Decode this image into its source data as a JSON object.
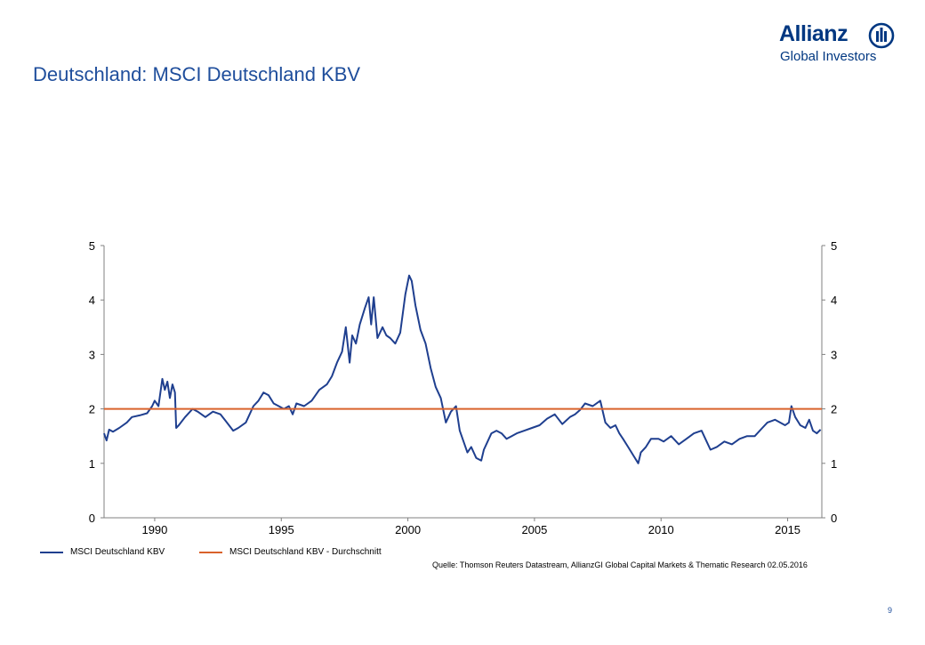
{
  "page": {
    "title": "Deutschland: MSCI Deutschland KBV",
    "page_number": "9"
  },
  "logo": {
    "name": "Allianz",
    "subtitle": "Global Investors",
    "brand_color": "#003781"
  },
  "legend": {
    "series_label": "MSCI Deutschland KBV",
    "average_label": "MSCI Deutschland KBV - Durchschnitt"
  },
  "source": "Quelle: Thomson Reuters Datastream, AllianzGI Global Capital Markets & Thematic Research 02.05.2016",
  "colors": {
    "series": "#1f3f8f",
    "average": "#d9622b",
    "title": "#1f4e9c",
    "axis": "#808080"
  },
  "chart_data": {
    "type": "line",
    "title": "",
    "xlabel": "",
    "ylabel": "",
    "xlim": [
      1988.0,
      2016.35
    ],
    "ylim": [
      0,
      5
    ],
    "x_ticks": [
      1990,
      1995,
      2000,
      2005,
      2010,
      2015
    ],
    "y_ticks": [
      0,
      1,
      2,
      3,
      4,
      5
    ],
    "y_axis_right": true,
    "grid": false,
    "legend_position": "bottom-left",
    "series": [
      {
        "name": "MSCI Deutschland KBV",
        "x": [
          1988.0,
          1988.1,
          1988.2,
          1988.35,
          1988.6,
          1988.9,
          1989.1,
          1989.4,
          1989.7,
          1989.9,
          1990.0,
          1990.15,
          1990.3,
          1990.4,
          1990.5,
          1990.6,
          1990.7,
          1990.8,
          1990.85,
          1990.95,
          1991.2,
          1991.5,
          1991.7,
          1992.0,
          1992.3,
          1992.6,
          1992.9,
          1993.1,
          1993.3,
          1993.6,
          1993.9,
          1994.1,
          1994.3,
          1994.5,
          1994.7,
          1994.9,
          1995.1,
          1995.3,
          1995.45,
          1995.6,
          1995.9,
          1996.2,
          1996.5,
          1996.8,
          1997.0,
          1997.2,
          1997.4,
          1997.55,
          1997.7,
          1997.8,
          1997.95,
          1998.1,
          1998.3,
          1998.45,
          1998.55,
          1998.65,
          1998.8,
          1999.0,
          1999.15,
          1999.3,
          1999.5,
          1999.7,
          1999.9,
          2000.05,
          2000.15,
          2000.3,
          2000.5,
          2000.7,
          2000.9,
          2001.1,
          2001.3,
          2001.5,
          2001.7,
          2001.9,
          2002.05,
          2002.2,
          2002.35,
          2002.5,
          2002.7,
          2002.9,
          2003.0,
          2003.1,
          2003.3,
          2003.5,
          2003.7,
          2003.9,
          2004.1,
          2004.3,
          2004.6,
          2004.9,
          2005.2,
          2005.5,
          2005.8,
          2006.1,
          2006.4,
          2006.6,
          2006.8,
          2007.0,
          2007.3,
          2007.6,
          2007.8,
          2008.0,
          2008.2,
          2008.35,
          2008.5,
          2008.7,
          2008.9,
          2009.1,
          2009.2,
          2009.4,
          2009.6,
          2009.9,
          2010.1,
          2010.4,
          2010.7,
          2011.0,
          2011.3,
          2011.6,
          2011.8,
          2011.95,
          2012.2,
          2012.5,
          2012.8,
          2013.1,
          2013.4,
          2013.7,
          2014.0,
          2014.2,
          2014.5,
          2014.7,
          2014.9,
          2015.05,
          2015.15,
          2015.3,
          2015.5,
          2015.7,
          2015.85,
          2016.0,
          2016.15,
          2016.3
        ],
        "values": [
          1.55,
          1.42,
          1.62,
          1.58,
          1.65,
          1.75,
          1.85,
          1.88,
          1.92,
          2.05,
          2.15,
          2.05,
          2.55,
          2.35,
          2.5,
          2.2,
          2.45,
          2.3,
          1.65,
          1.7,
          1.85,
          2.0,
          1.95,
          1.85,
          1.95,
          1.9,
          1.72,
          1.6,
          1.65,
          1.75,
          2.05,
          2.15,
          2.3,
          2.25,
          2.1,
          2.05,
          2.0,
          2.05,
          1.9,
          2.1,
          2.05,
          2.15,
          2.35,
          2.45,
          2.6,
          2.85,
          3.05,
          3.5,
          2.85,
          3.35,
          3.2,
          3.55,
          3.85,
          4.05,
          3.55,
          4.05,
          3.3,
          3.5,
          3.35,
          3.3,
          3.2,
          3.4,
          4.1,
          4.45,
          4.35,
          3.9,
          3.45,
          3.2,
          2.75,
          2.4,
          2.2,
          1.75,
          1.95,
          2.05,
          1.6,
          1.4,
          1.2,
          1.3,
          1.1,
          1.05,
          1.25,
          1.35,
          1.55,
          1.6,
          1.55,
          1.45,
          1.5,
          1.55,
          1.6,
          1.65,
          1.7,
          1.82,
          1.9,
          1.72,
          1.85,
          1.9,
          1.98,
          2.1,
          2.05,
          2.15,
          1.75,
          1.65,
          1.7,
          1.55,
          1.45,
          1.3,
          1.15,
          1.0,
          1.2,
          1.3,
          1.45,
          1.45,
          1.4,
          1.5,
          1.35,
          1.45,
          1.55,
          1.6,
          1.4,
          1.25,
          1.3,
          1.4,
          1.35,
          1.45,
          1.5,
          1.5,
          1.65,
          1.75,
          1.8,
          1.75,
          1.7,
          1.75,
          2.05,
          1.85,
          1.7,
          1.65,
          1.8,
          1.6,
          1.55,
          1.62
        ]
      },
      {
        "name": "MSCI Deutschland KBV - Durchschnitt",
        "x": [
          1988.0,
          2016.35
        ],
        "values": [
          2.0,
          2.0
        ]
      }
    ]
  }
}
